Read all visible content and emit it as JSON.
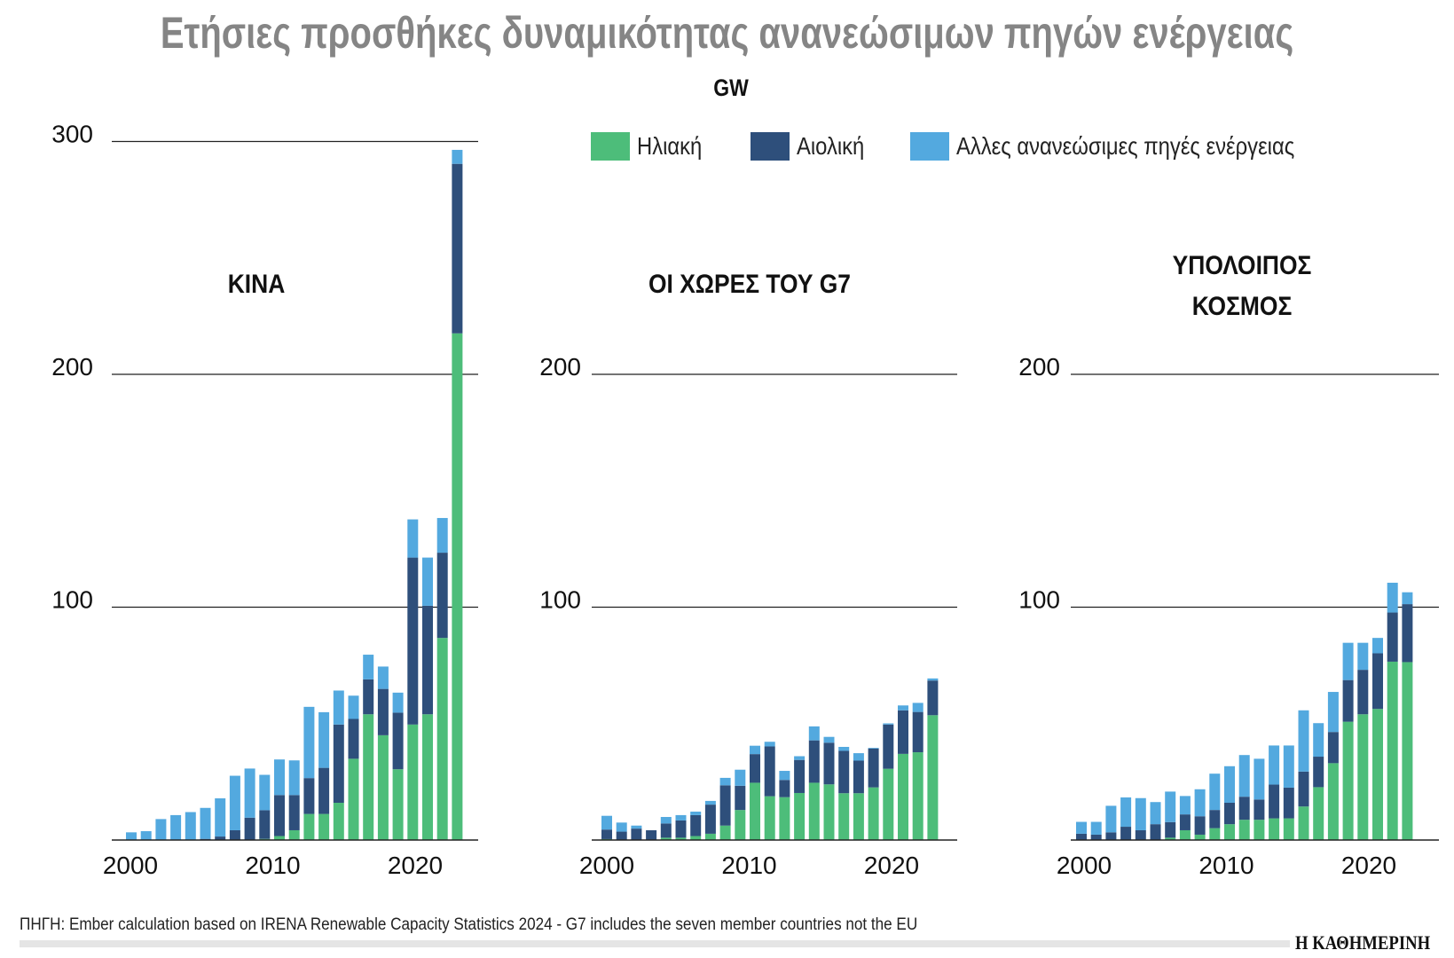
{
  "title": "Ετήσιες προσθήκες δυναμικότητας ανανεώσιμων πηγών ενέργειας",
  "unit": "GW",
  "legend": [
    {
      "label": "Ηλιακή",
      "color": "#4dbd7a"
    },
    {
      "label": "Αιολική",
      "color": "#2e4f7b"
    },
    {
      "label": "Αλλες ανανεώσιμες πηγές ενέργειας",
      "color": "#53a9df"
    }
  ],
  "source": "ΠΗΓΗ: Ember calculation based on IRENA Renewable Capacity Statistics 2024 - G7 includes the seven member countries not the EU",
  "logo": "Η ΚΑΘΗΜΕΡΙΝΗ",
  "chart_data": [
    {
      "type": "bar",
      "stacked": true,
      "title": "ΚΙΝΑ",
      "title_lines": [
        "ΚΙΝΑ"
      ],
      "ylim": [
        0,
        300
      ],
      "yticks": [
        100,
        200,
        300
      ],
      "xticks": [
        2000,
        2010,
        2020
      ],
      "categories": [
        2001,
        2002,
        2003,
        2004,
        2005,
        2006,
        2007,
        2008,
        2009,
        2010,
        2011,
        2012,
        2013,
        2014,
        2015,
        2016,
        2017,
        2018,
        2019,
        2020,
        2021,
        2022,
        2023
      ],
      "series": [
        {
          "name": "Ηλιακή",
          "values": [
            0,
            0,
            0,
            0,
            0,
            0,
            0,
            0,
            0,
            0.5,
            1.7,
            4.2,
            11.2,
            11.2,
            16,
            34.9,
            54,
            45,
            30.4,
            49.6,
            54,
            86.8,
            217.6
          ]
        },
        {
          "name": "Αιολική",
          "values": [
            0,
            0,
            0,
            0,
            0,
            0.5,
            1.5,
            4.2,
            9.6,
            12.3,
            17.6,
            15.1,
            15.4,
            19.8,
            33.6,
            17.1,
            15,
            19.9,
            24.3,
            71.7,
            46.6,
            36.6,
            72.8
          ]
        },
        {
          "name": "Αλλες ανανεώσιμες πηγές ενέργειας",
          "values": [
            3.3,
            3.8,
            9,
            10.7,
            12,
            13.3,
            16.4,
            23.4,
            21.1,
            15.2,
            15.3,
            14.9,
            30.6,
            23.9,
            14.6,
            10,
            10.6,
            9.6,
            8.6,
            16.4,
            20.7,
            14.9,
            6
          ]
        }
      ]
    },
    {
      "type": "bar",
      "stacked": true,
      "title": "ΟΙ ΧΩΡΕΣ ΤΟΥ G7",
      "title_lines": [
        "ΟΙ ΧΩΡΕΣ ΤΟΥ G7"
      ],
      "ylim": [
        0,
        200
      ],
      "yticks": [
        100,
        200
      ],
      "xticks": [
        2000,
        2010,
        2020
      ],
      "categories": [
        2001,
        2002,
        2003,
        2004,
        2005,
        2006,
        2007,
        2008,
        2009,
        2010,
        2011,
        2012,
        2013,
        2014,
        2015,
        2016,
        2017,
        2018,
        2019,
        2020,
        2021,
        2022,
        2023
      ],
      "series": [
        {
          "name": "Ηλιακή",
          "values": [
            0.4,
            0,
            0,
            0,
            1,
            1,
            1.7,
            2.7,
            6.2,
            12.9,
            24.6,
            18.8,
            18.4,
            20.2,
            24.6,
            23.9,
            20.1,
            20.1,
            22.6,
            30.6,
            37,
            37.7,
            53.6
          ]
        },
        {
          "name": "Αιολική",
          "values": [
            4.1,
            3.6,
            4.9,
            4.2,
            6.1,
            7.4,
            9,
            12.5,
            17.3,
            10.4,
            12.3,
            21.4,
            7.4,
            14.2,
            18.2,
            17.9,
            18.2,
            14,
            16.7,
            19,
            18.7,
            17.3,
            14.9
          ]
        },
        {
          "name": "Αλλες ανανεώσιμες πηγές ενέργειας",
          "values": [
            5.9,
            3.9,
            1.3,
            0,
            2.8,
            2.3,
            1.5,
            1.6,
            3.2,
            6.9,
            3.6,
            2,
            3.9,
            1.6,
            6,
            2.5,
            1.7,
            3.2,
            0.3,
            0.5,
            2.1,
            3.9,
            0.9
          ]
        }
      ]
    },
    {
      "type": "bar",
      "stacked": true,
      "title": "ΥΠΟΛΟΙΠΟΣ ΚΟΣΜΟΣ",
      "title_lines": [
        "ΥΠΟΛΟΙΠΟΣ",
        "ΚΟΣΜΟΣ"
      ],
      "ylim": [
        0,
        200
      ],
      "yticks": [
        100,
        200
      ],
      "xticks": [
        2000,
        2010,
        2020
      ],
      "categories": [
        2001,
        2002,
        2003,
        2004,
        2005,
        2006,
        2007,
        2008,
        2009,
        2010,
        2011,
        2012,
        2013,
        2014,
        2015,
        2016,
        2017,
        2018,
        2019,
        2020,
        2021,
        2022,
        2023
      ],
      "series": [
        {
          "name": "Ηλιακή",
          "values": [
            0,
            0,
            0,
            0,
            0,
            0,
            1,
            4.2,
            2.3,
            5.1,
            6.8,
            8.7,
            8.7,
            9.3,
            9.3,
            14.4,
            22.7,
            33,
            50.8,
            54,
            56.3,
            76.6,
            76.4
          ]
        },
        {
          "name": "Αιολική",
          "values": [
            2.7,
            2.3,
            3.3,
            5.7,
            4.2,
            6.8,
            6.7,
            6.8,
            7.9,
            7.8,
            9.2,
            9.9,
            8.7,
            14.5,
            13.2,
            15,
            13.1,
            13.4,
            17.9,
            19.1,
            23.9,
            21.1,
            24.9
          ]
        },
        {
          "name": "Αλλες ανανεώσιμες πηγές ενέργειας",
          "values": [
            5.1,
            5.5,
            11.4,
            12.6,
            13.8,
            9.5,
            13.1,
            7.9,
            11.6,
            15.6,
            15.7,
            17.9,
            17.5,
            16.8,
            18.1,
            26.3,
            14.4,
            17.2,
            16,
            11.6,
            6.6,
            12.8,
            5.1
          ]
        }
      ]
    }
  ]
}
